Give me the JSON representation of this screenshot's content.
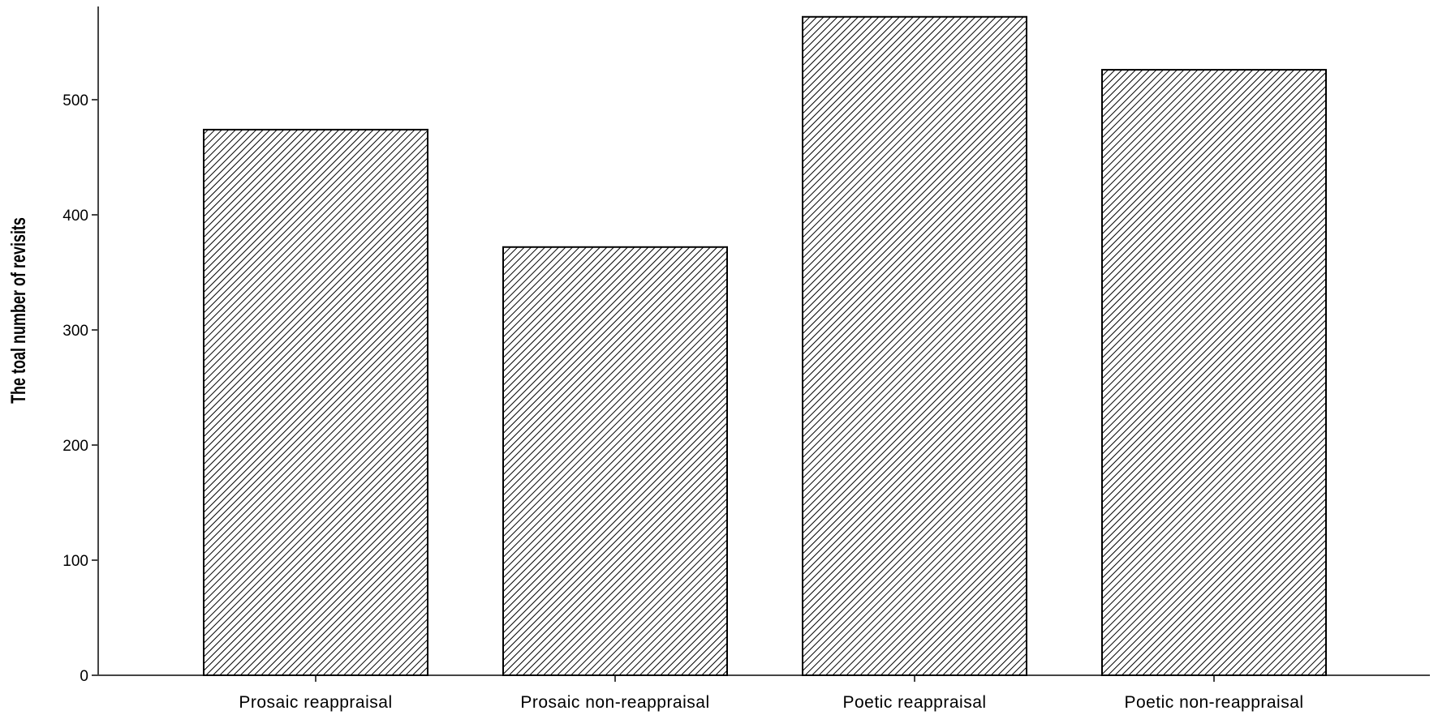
{
  "chart_data": {
    "type": "bar",
    "categories": [
      "Prosaic reappraisal",
      "Prosaic non-reappraisal",
      "Poetic reappraisal",
      "Poetic non-reappraisal"
    ],
    "values": [
      474,
      372,
      572,
      526
    ],
    "title": "",
    "xlabel": "",
    "ylabel": "The toal number of revisits",
    "ylim": [
      0,
      580
    ],
    "yticks": [
      0,
      100,
      200,
      300,
      400,
      500
    ],
    "grid": false,
    "legend": "none",
    "bar_fill": "diagonal hatch",
    "colors": {
      "bar_stroke": "#000000",
      "hatch": "#000000",
      "axis": "#444444"
    }
  }
}
